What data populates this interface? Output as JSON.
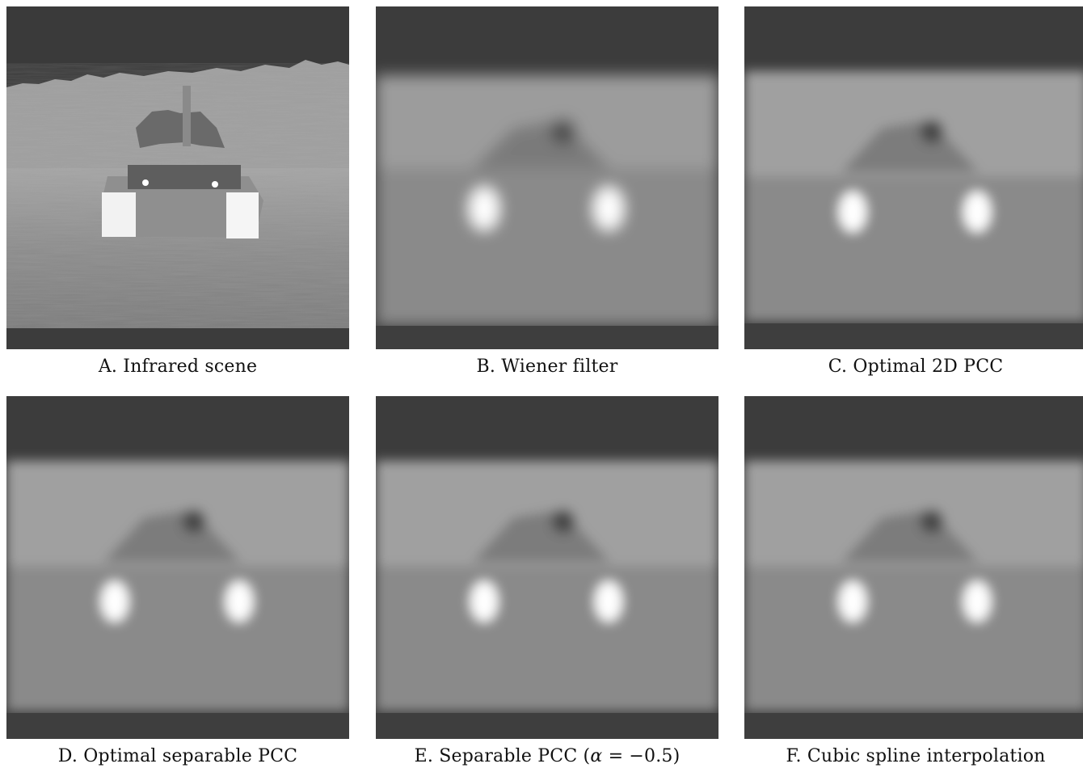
{
  "figure": {
    "panels": [
      {
        "id": "A",
        "caption": "A. Infrared scene",
        "kind": "sharp"
      },
      {
        "id": "B",
        "caption": "B. Wiener filter",
        "kind": "wiener"
      },
      {
        "id": "C",
        "caption": "C. Optimal 2D PCC",
        "kind": "smooth"
      },
      {
        "id": "D",
        "caption": "D. Optimal separable PCC",
        "kind": "smooth"
      },
      {
        "id": "E",
        "caption_prefix": "E. Separable PCC (",
        "caption_symbol": "α",
        "caption_suffix": " = −0.5)",
        "kind": "smooth"
      },
      {
        "id": "F",
        "caption": "F. Cubic spline interpolation",
        "kind": "smooth"
      }
    ]
  },
  "colors": {
    "sky": "#3a3a3a",
    "field": "#a9a9a9",
    "hot": "#ffffff"
  }
}
